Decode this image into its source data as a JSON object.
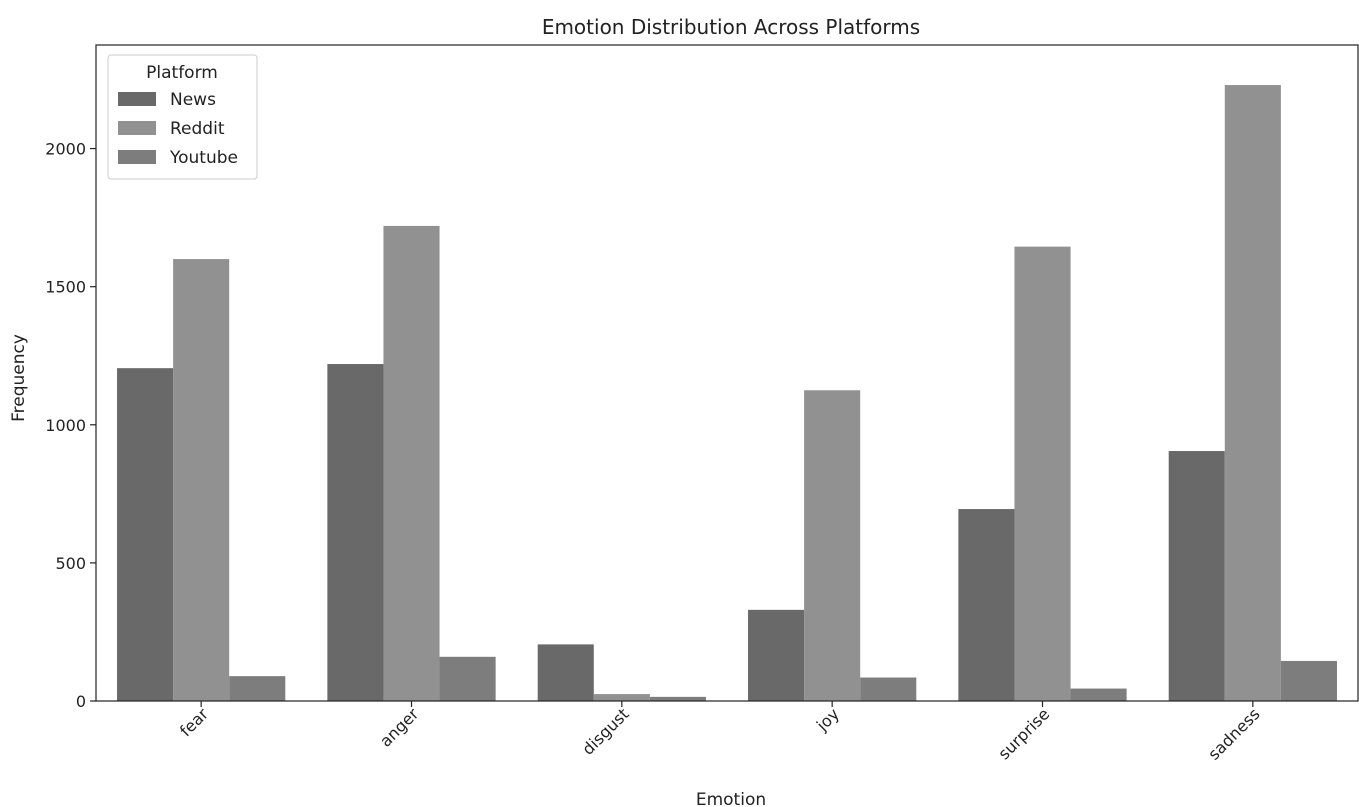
{
  "chart_data": {
    "type": "bar",
    "title": "Emotion Distribution Across Platforms",
    "xlabel": "Emotion",
    "ylabel": "Frequency",
    "categories": [
      "fear",
      "anger",
      "disgust",
      "joy",
      "surprise",
      "sadness"
    ],
    "series": [
      {
        "name": "News",
        "color": "#696969",
        "values": [
          1205,
          1220,
          205,
          330,
          695,
          905
        ]
      },
      {
        "name": "Reddit",
        "color": "#919191",
        "values": [
          1600,
          1720,
          25,
          1125,
          1645,
          2230
        ]
      },
      {
        "name": "Youtube",
        "color": "#7d7d7d",
        "values": [
          90,
          160,
          15,
          85,
          45,
          145
        ]
      }
    ],
    "ylim": [
      0,
      2375
    ],
    "yticks": [
      0,
      500,
      1000,
      1500,
      2000
    ],
    "grid": false,
    "legend": {
      "title": "Platform",
      "placement": "top-left"
    }
  }
}
